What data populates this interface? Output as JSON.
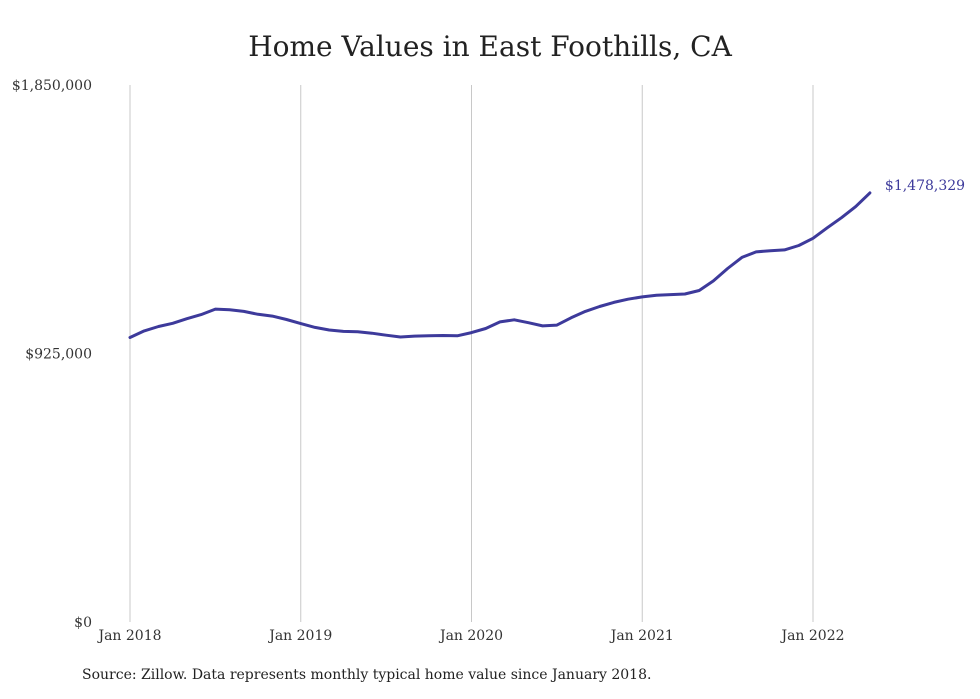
{
  "chart_data": {
    "type": "line",
    "title": "Home Values in East Foothills, CA",
    "source": "Source: Zillow. Data represents monthly typical home value since January 2018.",
    "yticks": [
      {
        "value": 0,
        "label": "$0"
      },
      {
        "value": 925000,
        "label": "$925,000"
      },
      {
        "value": 1850000,
        "label": "$1,850,000"
      }
    ],
    "ylim": [
      0,
      1850000
    ],
    "xlim": [
      "2018-01",
      "2022-05"
    ],
    "xticks": [
      {
        "date": "2018-01",
        "label": "Jan 2018"
      },
      {
        "date": "2019-01",
        "label": "Jan 2019"
      },
      {
        "date": "2020-01",
        "label": "Jan 2020"
      },
      {
        "date": "2021-01",
        "label": "Jan 2021"
      },
      {
        "date": "2022-01",
        "label": "Jan 2022"
      }
    ],
    "grid": "vertical",
    "line_color": "#3d3a9b",
    "end_label": "$1,478,329",
    "series": [
      {
        "x": [
          "2018-01",
          "2018-02",
          "2018-03",
          "2018-04",
          "2018-05",
          "2018-06",
          "2018-07",
          "2018-08",
          "2018-09",
          "2018-10",
          "2018-11",
          "2018-12",
          "2019-01",
          "2019-02",
          "2019-03",
          "2019-04",
          "2019-05",
          "2019-06",
          "2019-07",
          "2019-08",
          "2019-09",
          "2019-10",
          "2019-11",
          "2019-12",
          "2020-01",
          "2020-02",
          "2020-03",
          "2020-04",
          "2020-05",
          "2020-06",
          "2020-07",
          "2020-08",
          "2020-09",
          "2020-10",
          "2020-11",
          "2020-12",
          "2021-01",
          "2021-02",
          "2021-03",
          "2021-04",
          "2021-05",
          "2021-06",
          "2021-07",
          "2021-08",
          "2021-09",
          "2021-10",
          "2021-11",
          "2021-12",
          "2022-01",
          "2022-02",
          "2022-03",
          "2022-04",
          "2022-05"
        ],
        "values": [
          980000,
          1003000,
          1018000,
          1029000,
          1045000,
          1059000,
          1078000,
          1076000,
          1070000,
          1060000,
          1054000,
          1042000,
          1028000,
          1015000,
          1006000,
          1001000,
          1000000,
          995000,
          988000,
          982000,
          985000,
          986000,
          987000,
          986000,
          997000,
          1011000,
          1034000,
          1041000,
          1031000,
          1020000,
          1023000,
          1048000,
          1070000,
          1087000,
          1101000,
          1112000,
          1120000,
          1126000,
          1128000,
          1130000,
          1142000,
          1175000,
          1218000,
          1256000,
          1275000,
          1279000,
          1282000,
          1297000,
          1322000,
          1358000,
          1393000,
          1431000,
          1478329
        ]
      }
    ]
  }
}
